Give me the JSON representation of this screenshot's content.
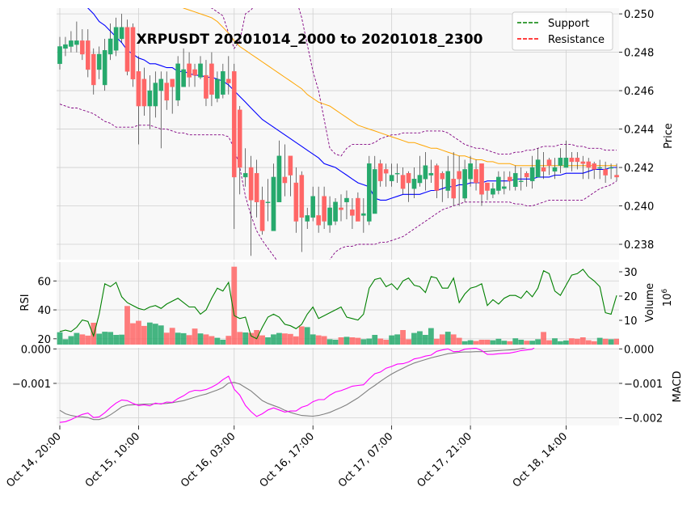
{
  "chart_data": {
    "type": "candlestick",
    "title": "XRPUSDT 20201014_2000 to 20201018_2300",
    "legend": {
      "placement": "top-right",
      "entries": [
        {
          "label": "Support",
          "color": "#008000",
          "style": "dashed"
        },
        {
          "label": "Resistance",
          "color": "#ff0000",
          "style": "dashed"
        }
      ]
    },
    "colors": {
      "up": "#26a96c",
      "down": "#ff6666",
      "ma_fast": "#0000ff",
      "ma_slow": "#ffa500",
      "bollinger": "#800080",
      "rsi": "#008000",
      "macd": "#ff00ff",
      "signal": "#808080",
      "panel_bg": "#f8f8f8",
      "grid": "#d0d0d0"
    },
    "x_ticks": [
      {
        "label": "Oct 14, 20:00",
        "index": 0
      },
      {
        "label": "Oct 15, 10:00",
        "index": 14
      },
      {
        "label": "Oct 16, 03:00",
        "index": 31
      },
      {
        "label": "Oct 16, 17:00",
        "index": 45
      },
      {
        "label": "Oct 17, 07:00",
        "index": 59
      },
      {
        "label": "Oct 17, 21:00",
        "index": 73
      },
      {
        "label": "Oct 18, 14:00",
        "index": 90
      }
    ],
    "price_panel": {
      "ylabel": "Price",
      "ylim": [
        0.2372,
        0.2503
      ],
      "yticks": [
        0.238,
        0.24,
        0.242,
        0.244,
        0.246,
        0.248,
        0.25
      ],
      "ytick_labels": [
        "0.238",
        "0.240",
        "0.242",
        "0.244",
        "0.246",
        "0.248",
        "0.250"
      ]
    },
    "volume_panel": {
      "ylabel": "Volume",
      "unit": "10^6",
      "ylim": [
        0,
        34
      ],
      "yticks": [
        10,
        20,
        30
      ],
      "ytick_labels": [
        "10",
        "20",
        "30"
      ]
    },
    "rsi_panel": {
      "ylabel": "RSI",
      "ylim": [
        16,
        73
      ],
      "yticks": [
        20,
        40,
        60
      ],
      "ytick_labels": [
        "20",
        "40",
        "60"
      ]
    },
    "macd_panel": {
      "ylabel": "MACD",
      "ylim": [
        -0.00222,
        3e-05
      ],
      "yticks": [
        0.0,
        -0.001,
        -0.002
      ],
      "ytick_labels": [
        "0.000",
        "−0.001",
        "−0.002"
      ],
      "left_yticks": [
        0.0,
        -0.001
      ],
      "left_ytick_labels": [
        "0.000",
        "−0.001"
      ]
    },
    "ohlc": {
      "open": [
        0.2474,
        0.2482,
        0.2483,
        0.2484,
        0.2486,
        0.2486,
        0.2479,
        0.2471,
        0.2463,
        0.2479,
        0.2481,
        0.2487,
        0.2493,
        0.2493,
        0.247,
        0.2466,
        0.2452,
        0.2452,
        0.246,
        0.2464,
        0.2466,
        0.2455,
        0.2462,
        0.2474,
        0.2471,
        0.2467,
        0.2468,
        0.2474,
        0.2456,
        0.2458,
        0.2466,
        0.247,
        0.245,
        0.2415,
        0.242,
        0.2417,
        0.2403,
        0.2402,
        0.2387,
        0.2402,
        0.2415,
        0.2426,
        0.2412,
        0.2416,
        0.2392,
        0.2394,
        0.2395,
        0.2405,
        0.239,
        0.2392,
        0.2399,
        0.2402,
        0.2398,
        0.2404,
        0.2395,
        0.2392,
        0.2396,
        0.2422,
        0.2419,
        0.2413,
        0.2417,
        0.2416,
        0.2417,
        0.2409,
        0.2412,
        0.2414,
        0.2416,
        0.2421,
        0.2417,
        0.2408,
        0.2414,
        0.2418,
        0.2404,
        0.2414,
        0.2419,
        0.2422,
        0.2412,
        0.2406,
        0.2408,
        0.2409,
        0.2415,
        0.241,
        0.2413,
        0.2417,
        0.2413,
        0.2415,
        0.242,
        0.2424,
        0.2418,
        0.2421,
        0.242,
        0.2425,
        0.2425,
        0.2423,
        0.2423,
        0.2422,
        0.242,
        0.2419,
        0.242,
        0.2416
      ],
      "close": [
        0.2483,
        0.2484,
        0.2486,
        0.2486,
        0.2479,
        0.2471,
        0.2463,
        0.2479,
        0.2481,
        0.2487,
        0.2493,
        0.2493,
        0.247,
        0.2466,
        0.2452,
        0.2452,
        0.246,
        0.2464,
        0.2466,
        0.2455,
        0.2462,
        0.2474,
        0.2471,
        0.2467,
        0.2468,
        0.2474,
        0.2456,
        0.2458,
        0.2466,
        0.247,
        0.2464,
        0.2415,
        0.242,
        0.2417,
        0.2403,
        0.2402,
        0.2387,
        0.2402,
        0.2415,
        0.2426,
        0.2412,
        0.2416,
        0.2392,
        0.2394,
        0.2395,
        0.2405,
        0.239,
        0.2392,
        0.2399,
        0.2402,
        0.2398,
        0.2404,
        0.2395,
        0.2392,
        0.2396,
        0.2422,
        0.2419,
        0.2413,
        0.2417,
        0.2416,
        0.2417,
        0.2409,
        0.2412,
        0.2414,
        0.2416,
        0.2421,
        0.2417,
        0.2408,
        0.2414,
        0.2418,
        0.2404,
        0.2414,
        0.2419,
        0.2422,
        0.2412,
        0.2406,
        0.2408,
        0.2409,
        0.2415,
        0.241,
        0.2413,
        0.2417,
        0.2413,
        0.2415,
        0.242,
        0.2424,
        0.2418,
        0.2421,
        0.242,
        0.2425,
        0.2425,
        0.2423,
        0.2423,
        0.2422,
        0.242,
        0.2419,
        0.242,
        0.2416,
        0.242,
        0.2415
      ],
      "high": [
        0.2488,
        0.2488,
        0.2491,
        0.2496,
        0.2492,
        0.2492,
        0.2482,
        0.2483,
        0.2487,
        0.2495,
        0.2498,
        0.25,
        0.2497,
        0.2495,
        0.2478,
        0.2472,
        0.2468,
        0.247,
        0.247,
        0.247,
        0.2466,
        0.2478,
        0.2482,
        0.248,
        0.2474,
        0.2478,
        0.2476,
        0.248,
        0.247,
        0.2474,
        0.2478,
        0.2474,
        0.2452,
        0.243,
        0.2426,
        0.2424,
        0.241,
        0.2414,
        0.2422,
        0.2434,
        0.2432,
        0.2424,
        0.242,
        0.2418,
        0.2399,
        0.241,
        0.241,
        0.241,
        0.2405,
        0.2404,
        0.2406,
        0.2408,
        0.2404,
        0.2407,
        0.2404,
        0.2426,
        0.2426,
        0.2424,
        0.2422,
        0.2422,
        0.2422,
        0.242,
        0.2418,
        0.242,
        0.2426,
        0.2428,
        0.2424,
        0.2422,
        0.2418,
        0.2426,
        0.2428,
        0.2426,
        0.2424,
        0.2426,
        0.2424,
        0.2418,
        0.2412,
        0.2412,
        0.2418,
        0.2418,
        0.2418,
        0.2421,
        0.242,
        0.2418,
        0.2426,
        0.243,
        0.2428,
        0.2425,
        0.2425,
        0.243,
        0.2434,
        0.2428,
        0.2428,
        0.2426,
        0.2425,
        0.2423,
        0.2424,
        0.2423,
        0.2422,
        0.2422
      ],
      "low": [
        0.2471,
        0.2478,
        0.248,
        0.248,
        0.2476,
        0.2467,
        0.2458,
        0.2466,
        0.246,
        0.2476,
        0.2478,
        0.2485,
        0.2468,
        0.2462,
        0.2432,
        0.2447,
        0.244,
        0.2446,
        0.243,
        0.245,
        0.2448,
        0.2452,
        0.2462,
        0.2462,
        0.2462,
        0.2466,
        0.2452,
        0.2452,
        0.2454,
        0.2456,
        0.2458,
        0.2388,
        0.2406,
        0.241,
        0.2374,
        0.2394,
        0.2385,
        0.2392,
        0.2402,
        0.241,
        0.2405,
        0.2405,
        0.2386,
        0.2376,
        0.2388,
        0.2392,
        0.2386,
        0.2388,
        0.2386,
        0.239,
        0.2392,
        0.2393,
        0.2388,
        0.2392,
        0.2386,
        0.239,
        0.2412,
        0.241,
        0.241,
        0.241,
        0.2412,
        0.2406,
        0.2402,
        0.2404,
        0.241,
        0.2408,
        0.2412,
        0.2404,
        0.2402,
        0.2404,
        0.24,
        0.24,
        0.2402,
        0.241,
        0.2408,
        0.24,
        0.2403,
        0.2404,
        0.2406,
        0.2406,
        0.2408,
        0.2408,
        0.2408,
        0.241,
        0.2409,
        0.2416,
        0.2414,
        0.2416,
        0.2414,
        0.2417,
        0.242,
        0.2418,
        0.2419,
        0.2414,
        0.2414,
        0.2414,
        0.2414,
        0.2412,
        0.2414,
        0.2413
      ]
    },
    "ma_fast": [
      0.2505,
      0.2507,
      0.2508,
      0.2507,
      0.2506,
      0.2503,
      0.25,
      0.2496,
      0.2494,
      0.2491,
      0.2488,
      0.2485,
      0.2481,
      0.2479,
      0.2477,
      0.2476,
      0.2474,
      0.2474,
      0.2473,
      0.2472,
      0.2472,
      0.247,
      0.247,
      0.2469,
      0.2468,
      0.2468,
      0.2467,
      0.2467,
      0.2466,
      0.2465,
      0.2463,
      0.246,
      0.2457,
      0.2454,
      0.2451,
      0.2448,
      0.2445,
      0.2443,
      0.2441,
      0.2439,
      0.2437,
      0.2435,
      0.2433,
      0.2431,
      0.2429,
      0.2427,
      0.2425,
      0.2422,
      0.2421,
      0.242,
      0.2418,
      0.2416,
      0.2414,
      0.2412,
      0.2411,
      0.241,
      0.2404,
      0.2403,
      0.2403,
      0.2404,
      0.2405,
      0.2406,
      0.2406,
      0.2406,
      0.2406,
      0.2407,
      0.2408,
      0.2408,
      0.2409,
      0.241,
      0.241,
      0.2411,
      0.2411,
      0.2412,
      0.2412,
      0.2412,
      0.2413,
      0.2413,
      0.2413,
      0.2413,
      0.2413,
      0.2414,
      0.2414,
      0.2414,
      0.2414,
      0.2415,
      0.2415,
      0.2415,
      0.2416,
      0.2416,
      0.2417,
      0.2417,
      0.2417,
      0.2417,
      0.2418,
      0.2419,
      0.2419,
      0.2419,
      0.242,
      0.242
    ],
    "ma_slow": [
      0.2538,
      0.2537,
      0.2536,
      0.2535,
      0.2533,
      0.2532,
      0.253,
      0.2528,
      0.2527,
      0.2525,
      0.2523,
      0.2522,
      0.252,
      0.2518,
      0.2517,
      0.2515,
      0.2513,
      0.2512,
      0.251,
      0.2508,
      0.2506,
      0.2505,
      0.2503,
      0.2502,
      0.2501,
      0.25,
      0.2499,
      0.2498,
      0.2496,
      0.2493,
      0.249,
      0.2486,
      0.2483,
      0.2481,
      0.2479,
      0.2477,
      0.2475,
      0.2473,
      0.2471,
      0.2469,
      0.2467,
      0.2465,
      0.2463,
      0.2461,
      0.2458,
      0.2456,
      0.2454,
      0.2453,
      0.2452,
      0.245,
      0.2448,
      0.2446,
      0.2444,
      0.2442,
      0.2441,
      0.244,
      0.2439,
      0.2438,
      0.2437,
      0.2436,
      0.2435,
      0.2434,
      0.2433,
      0.2433,
      0.2432,
      0.2431,
      0.243,
      0.243,
      0.2429,
      0.2428,
      0.2427,
      0.2426,
      0.2426,
      0.2425,
      0.2424,
      0.2424,
      0.2423,
      0.2423,
      0.2422,
      0.2422,
      0.2422,
      0.2421,
      0.2421,
      0.2421,
      0.2421,
      0.2421,
      0.2421,
      0.2421,
      0.2421,
      0.2421,
      0.2421,
      0.2421,
      0.2421,
      0.2421,
      0.2421,
      0.2421,
      0.2421,
      0.2421,
      0.2421,
      0.2421
    ],
    "boll_upper": [
      0.2525,
      0.2526,
      0.2528,
      0.253,
      0.2531,
      0.2532,
      0.2532,
      0.2531,
      0.253,
      0.2529,
      0.2528,
      0.2527,
      0.2526,
      0.2524,
      0.2522,
      0.252,
      0.2518,
      0.2516,
      0.2513,
      0.251,
      0.2508,
      0.2507,
      0.2507,
      0.2506,
      0.2505,
      0.2505,
      0.2504,
      0.2503,
      0.2501,
      0.2499,
      0.249,
      0.2482,
      0.2486,
      0.25,
      0.2502,
      0.2506,
      0.251,
      0.2512,
      0.2513,
      0.2514,
      0.2513,
      0.2512,
      0.2508,
      0.2498,
      0.2484,
      0.247,
      0.246,
      0.2445,
      0.243,
      0.2427,
      0.2426,
      0.243,
      0.2432,
      0.2432,
      0.2432,
      0.2432,
      0.2433,
      0.2435,
      0.2436,
      0.2437,
      0.2437,
      0.2438,
      0.2438,
      0.2438,
      0.2438,
      0.2439,
      0.2439,
      0.2439,
      0.2439,
      0.2438,
      0.2436,
      0.2434,
      0.2432,
      0.2431,
      0.243,
      0.243,
      0.2429,
      0.2428,
      0.2427,
      0.2427,
      0.2427,
      0.2428,
      0.2428,
      0.2429,
      0.2429,
      0.243,
      0.2431,
      0.2431,
      0.2431,
      0.2432,
      0.2432,
      0.2432,
      0.2431,
      0.2431,
      0.243,
      0.243,
      0.243,
      0.2429,
      0.2429,
      0.2429
    ],
    "boll_lower": [
      0.2453,
      0.2452,
      0.2451,
      0.2451,
      0.245,
      0.2449,
      0.2448,
      0.2446,
      0.2444,
      0.2443,
      0.2441,
      0.2441,
      0.2441,
      0.2441,
      0.2442,
      0.2442,
      0.2442,
      0.2441,
      0.244,
      0.244,
      0.2439,
      0.2438,
      0.2438,
      0.2437,
      0.2437,
      0.2437,
      0.2437,
      0.2437,
      0.2437,
      0.2437,
      0.2436,
      0.243,
      0.242,
      0.2405,
      0.2395,
      0.2387,
      0.2382,
      0.2378,
      0.2374,
      0.237,
      0.2366,
      0.2362,
      0.2358,
      0.2352,
      0.2352,
      0.2358,
      0.2362,
      0.2367,
      0.2372,
      0.2376,
      0.2378,
      0.2379,
      0.2379,
      0.238,
      0.238,
      0.238,
      0.238,
      0.2381,
      0.2381,
      0.2382,
      0.2383,
      0.2384,
      0.2386,
      0.2388,
      0.239,
      0.2392,
      0.2394,
      0.2396,
      0.2398,
      0.2399,
      0.24,
      0.2401,
      0.2402,
      0.2402,
      0.2402,
      0.2402,
      0.2402,
      0.2402,
      0.2402,
      0.2402,
      0.2402,
      0.2401,
      0.2401,
      0.24,
      0.24,
      0.2401,
      0.2402,
      0.2403,
      0.2403,
      0.2403,
      0.2403,
      0.2403,
      0.2403,
      0.2403,
      0.2405,
      0.2407,
      0.2409,
      0.241,
      0.2411,
      0.2413
    ],
    "rsi": [
      25,
      26,
      25,
      28,
      33,
      32,
      22,
      37,
      58,
      56,
      59,
      49,
      45,
      43,
      41,
      40,
      42,
      43,
      41,
      44,
      46,
      48,
      45,
      42,
      42,
      37,
      40,
      48,
      55,
      53,
      59,
      36,
      34,
      35,
      22,
      20,
      28,
      35,
      37,
      35,
      30,
      29,
      27,
      30,
      37,
      42,
      34,
      36,
      38,
      40,
      42,
      35,
      34,
      33,
      37,
      55,
      61,
      62,
      56,
      58,
      54,
      60,
      62,
      57,
      56,
      52,
      63,
      62,
      55,
      55,
      62,
      45,
      51,
      55,
      56,
      58,
      43,
      47,
      44,
      48,
      50,
      50,
      48,
      53,
      49,
      55,
      67,
      65,
      53,
      50,
      57,
      64,
      65,
      68,
      63,
      60,
      56,
      38,
      37,
      50
    ],
    "volume": [
      5.1,
      2.2,
      3.5,
      4.8,
      4.2,
      3.7,
      9.0,
      4.5,
      5.3,
      5.2,
      4.0,
      4.1,
      15.9,
      8.8,
      9.8,
      7.7,
      9.1,
      8.6,
      7.9,
      4.9,
      6.9,
      4.9,
      4.7,
      3.9,
      6.6,
      4.6,
      4.2,
      3.5,
      2.8,
      2.0,
      3.6,
      32.1,
      5.2,
      5.0,
      4.8,
      6.0,
      3.8,
      3.0,
      4.2,
      4.8,
      4.6,
      4.4,
      3.4,
      7.5,
      7.2,
      4.2,
      3.8,
      3.5,
      2.2,
      2.0,
      3.0,
      3.2,
      3.0,
      2.8,
      2.2,
      2.5,
      4.0,
      2.5,
      2.0,
      3.8,
      4.2,
      6.0,
      2.2,
      4.8,
      5.5,
      4.0,
      6.8,
      2.4,
      4.2,
      5.3,
      4.2,
      2.8,
      1.4,
      1.8,
      1.5,
      2.0,
      2.0,
      1.8,
      2.4,
      1.6,
      1.4,
      2.6,
      2.0,
      1.6,
      1.6,
      2.2,
      5.2,
      1.8,
      2.6,
      1.4,
      1.7,
      2.6,
      2.4,
      3.0,
      1.8,
      1.4,
      2.8,
      2.4,
      2.2,
      2.4
    ],
    "macd": [
      -0.00213,
      -0.00211,
      -0.00205,
      -0.00197,
      -0.0019,
      -0.00186,
      -0.00199,
      -0.00197,
      -0.00185,
      -0.0017,
      -0.00157,
      -0.00148,
      -0.0015,
      -0.00158,
      -0.00164,
      -0.00162,
      -0.00165,
      -0.00157,
      -0.0016,
      -0.00154,
      -0.00155,
      -0.00144,
      -0.00136,
      -0.00125,
      -0.0012,
      -0.00121,
      -0.00118,
      -0.00111,
      -0.00102,
      -0.00089,
      -0.00079,
      -0.00117,
      -0.00134,
      -0.00164,
      -0.00182,
      -0.00196,
      -0.00188,
      -0.00177,
      -0.00171,
      -0.00177,
      -0.00183,
      -0.0018,
      -0.0018,
      -0.00169,
      -0.00164,
      -0.00153,
      -0.00147,
      -0.00147,
      -0.00134,
      -0.00125,
      -0.00121,
      -0.00115,
      -0.00108,
      -0.00106,
      -0.00104,
      -0.00087,
      -0.00072,
      -0.00067,
      -0.00056,
      -0.00051,
      -0.00044,
      -0.00043,
      -0.00038,
      -0.00029,
      -0.00026,
      -0.00021,
      -0.00018,
      -7e-05,
      -3e-05,
      0.0,
      -8e-05,
      -7e-05,
      -1e-05,
      1e-05,
      2e-05,
      -5e-05,
      -0.00016,
      -0.00016,
      -0.00014,
      -0.00013,
      -0.00012,
      -9e-05,
      -5e-05,
      -3e-05,
      -1e-05,
      0.00012,
      0.0002,
      0.00023,
      0.00021,
      0.0002,
      0.00022,
      0.00026,
      0.0003,
      0.0003,
      0.00026,
      0.00022,
      0.00019,
      0.00015,
      0.00015,
      0.00011
    ],
    "signal": [
      -0.00178,
      -0.00188,
      -0.00193,
      -0.00196,
      -0.00197,
      -0.00199,
      -0.00205,
      -0.00205,
      -0.002,
      -0.00191,
      -0.0018,
      -0.00168,
      -0.00163,
      -0.00162,
      -0.00161,
      -0.0016,
      -0.0016,
      -0.00159,
      -0.00159,
      -0.00158,
      -0.00156,
      -0.00153,
      -0.0015,
      -0.00145,
      -0.0014,
      -0.00135,
      -0.00131,
      -0.00125,
      -0.00119,
      -0.00112,
      -0.00099,
      -0.00097,
      -0.00102,
      -0.00112,
      -0.00122,
      -0.00136,
      -0.0015,
      -0.00158,
      -0.00164,
      -0.0017,
      -0.00178,
      -0.00184,
      -0.00189,
      -0.00193,
      -0.00194,
      -0.00195,
      -0.00193,
      -0.00189,
      -0.00184,
      -0.00177,
      -0.0017,
      -0.00162,
      -0.00152,
      -0.00142,
      -0.0013,
      -0.00117,
      -0.00106,
      -0.00094,
      -0.00083,
      -0.00073,
      -0.00064,
      -0.00056,
      -0.00048,
      -0.00041,
      -0.00036,
      -0.00031,
      -0.00026,
      -0.00022,
      -0.00018,
      -0.00014,
      -0.00012,
      -0.0001,
      -9e-05,
      -9e-05,
      -8e-05,
      -8e-05,
      -7e-05,
      -6e-05,
      -5e-05,
      -4e-05,
      -3e-05,
      -2e-05,
      1e-05,
      4e-05,
      7e-05,
      9e-05,
      0.00011,
      0.00013,
      0.00016,
      0.00018,
      0.0002,
      0.00022,
      0.00024,
      0.00025,
      0.00025,
      0.00024,
      0.00023,
      0.00022,
      0.00021,
      0.0002
    ]
  }
}
